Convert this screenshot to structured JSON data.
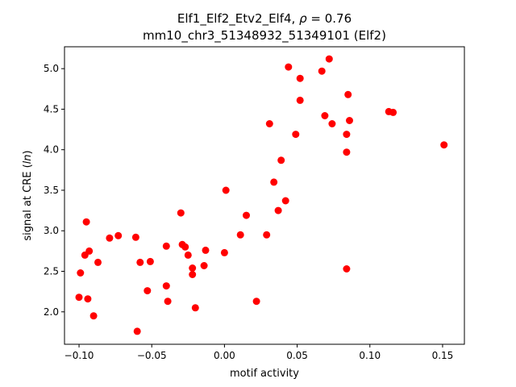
{
  "chart_data": {
    "type": "scatter",
    "title_line1": "Elf1_Elf2_Etv2_Elf4, ",
    "title_rho": "ρ",
    "title_rho_value": " = 0.76",
    "title_line2": "mm10_chr3_51348932_51349101 (Elf2)",
    "xlabel": "motif activity",
    "ylabel_prefix": "signal at CRE (",
    "ylabel_italic": "ln",
    "ylabel_suffix": ")",
    "xlim": [
      -0.11,
      0.165
    ],
    "ylim": [
      1.6,
      5.27
    ],
    "xticks": [
      -0.1,
      -0.05,
      0.0,
      0.05,
      0.1,
      0.15
    ],
    "xtick_labels": [
      "−0.10",
      "−0.05",
      "0.00",
      "0.05",
      "0.10",
      "0.15"
    ],
    "yticks": [
      2.0,
      2.5,
      3.0,
      3.5,
      4.0,
      4.5,
      5.0
    ],
    "ytick_labels": [
      "2.0",
      "2.5",
      "3.0",
      "3.5",
      "4.0",
      "4.5",
      "5.0"
    ],
    "marker_color": "#ff0000",
    "grid": false,
    "points": [
      {
        "x": -0.1,
        "y": 2.18
      },
      {
        "x": -0.099,
        "y": 2.48
      },
      {
        "x": -0.096,
        "y": 2.7
      },
      {
        "x": -0.095,
        "y": 3.11
      },
      {
        "x": -0.094,
        "y": 2.16
      },
      {
        "x": -0.093,
        "y": 2.75
      },
      {
        "x": -0.09,
        "y": 1.95
      },
      {
        "x": -0.087,
        "y": 2.61
      },
      {
        "x": -0.079,
        "y": 2.91
      },
      {
        "x": -0.073,
        "y": 2.94
      },
      {
        "x": -0.061,
        "y": 2.92
      },
      {
        "x": -0.06,
        "y": 1.76
      },
      {
        "x": -0.058,
        "y": 2.61
      },
      {
        "x": -0.053,
        "y": 2.26
      },
      {
        "x": -0.051,
        "y": 2.62
      },
      {
        "x": -0.04,
        "y": 2.81
      },
      {
        "x": -0.04,
        "y": 2.32
      },
      {
        "x": -0.039,
        "y": 2.13
      },
      {
        "x": -0.03,
        "y": 3.22
      },
      {
        "x": -0.029,
        "y": 2.83
      },
      {
        "x": -0.027,
        "y": 2.8
      },
      {
        "x": -0.025,
        "y": 2.7
      },
      {
        "x": -0.022,
        "y": 2.54
      },
      {
        "x": -0.022,
        "y": 2.46
      },
      {
        "x": -0.02,
        "y": 2.05
      },
      {
        "x": -0.014,
        "y": 2.57
      },
      {
        "x": -0.013,
        "y": 2.76
      },
      {
        "x": 0.0,
        "y": 2.73
      },
      {
        "x": 0.001,
        "y": 3.5
      },
      {
        "x": 0.011,
        "y": 2.95
      },
      {
        "x": 0.015,
        "y": 3.19
      },
      {
        "x": 0.022,
        "y": 2.13
      },
      {
        "x": 0.029,
        "y": 2.95
      },
      {
        "x": 0.031,
        "y": 4.32
      },
      {
        "x": 0.034,
        "y": 3.6
      },
      {
        "x": 0.037,
        "y": 3.25
      },
      {
        "x": 0.039,
        "y": 3.87
      },
      {
        "x": 0.042,
        "y": 3.37
      },
      {
        "x": 0.044,
        "y": 5.02
      },
      {
        "x": 0.049,
        "y": 4.19
      },
      {
        "x": 0.052,
        "y": 4.88
      },
      {
        "x": 0.052,
        "y": 4.61
      },
      {
        "x": 0.067,
        "y": 4.97
      },
      {
        "x": 0.069,
        "y": 4.42
      },
      {
        "x": 0.072,
        "y": 5.12
      },
      {
        "x": 0.074,
        "y": 4.32
      },
      {
        "x": 0.084,
        "y": 4.19
      },
      {
        "x": 0.084,
        "y": 3.97
      },
      {
        "x": 0.084,
        "y": 2.53
      },
      {
        "x": 0.085,
        "y": 4.68
      },
      {
        "x": 0.086,
        "y": 4.36
      },
      {
        "x": 0.113,
        "y": 4.47
      },
      {
        "x": 0.116,
        "y": 4.46
      },
      {
        "x": 0.151,
        "y": 4.06
      }
    ]
  }
}
